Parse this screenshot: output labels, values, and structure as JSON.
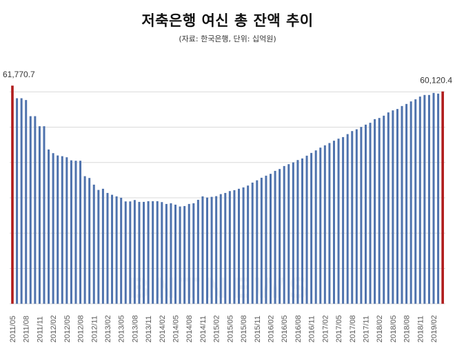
{
  "title": "저축은행 여신 총 잔액 추이",
  "subtitle": "(자료: 한국은행, 단위: 십억원)",
  "chart_data": {
    "type": "bar",
    "title": "저축은행 여신 총 잔액 추이",
    "subtitle": "(자료: 한국은행, 단위: 십억원)",
    "xlabel": "",
    "ylabel": "",
    "ylim": [
      0,
      60000
    ],
    "grid": true,
    "y_gridlines": [
      0,
      10000,
      20000,
      30000,
      40000,
      50000,
      60000
    ],
    "y_tick_labels_shown": false,
    "start_month": "2011/05",
    "end_month": "2019/04",
    "tick_labels": [
      "2011/05",
      "2011/08",
      "2011/11",
      "2012/02",
      "2012/05",
      "2012/08",
      "2012/11",
      "2013/02",
      "2013/05",
      "2013/08",
      "2013/11",
      "2014/02",
      "2014/05",
      "2014/08",
      "2014/11",
      "2015/02",
      "2015/05",
      "2015/08",
      "2015/11",
      "2016/02",
      "2016/05",
      "2016/08",
      "2016/11",
      "2017/02",
      "2017/05",
      "2017/08",
      "2017/11",
      "2018/02",
      "2018/05",
      "2018/08",
      "2018/11",
      "2019/02"
    ],
    "values": [
      61770.7,
      58200,
      58200,
      57690,
      53120,
      53120,
      50270,
      50270,
      43690,
      42650,
      41990,
      41790,
      41480,
      40620,
      40500,
      40500,
      36130,
      35620,
      33730,
      32230,
      32560,
      31380,
      30860,
      30410,
      30020,
      28980,
      28980,
      29370,
      28850,
      28850,
      29040,
      29040,
      29040,
      28790,
      28260,
      28460,
      28060,
      27540,
      27670,
      28260,
      28460,
      29430,
      30410,
      30080,
      30270,
      30470,
      31050,
      31380,
      31910,
      32170,
      32560,
      32950,
      33470,
      34310,
      34960,
      35680,
      36270,
      36790,
      37630,
      38160,
      39000,
      39530,
      40040,
      40700,
      41150,
      41930,
      42710,
      43430,
      44210,
      44860,
      45510,
      46170,
      46750,
      47200,
      48040,
      48900,
      49410,
      50070,
      50720,
      51250,
      52280,
      52610,
      53260,
      54180,
      54760,
      55150,
      55990,
      56580,
      57300,
      57890,
      58670,
      59120,
      59120,
      59700,
      59510,
      60120.4
    ],
    "highlighted": [
      {
        "month": "2011/05",
        "value": 61770.7,
        "label": "61,770.7"
      },
      {
        "month": "2019/04",
        "value": 60120.4,
        "label": "60,120.4"
      }
    ],
    "colors": {
      "bar": "#4e72ad",
      "highlight": "#b01c1c",
      "grid": "#d9d9d9"
    }
  }
}
